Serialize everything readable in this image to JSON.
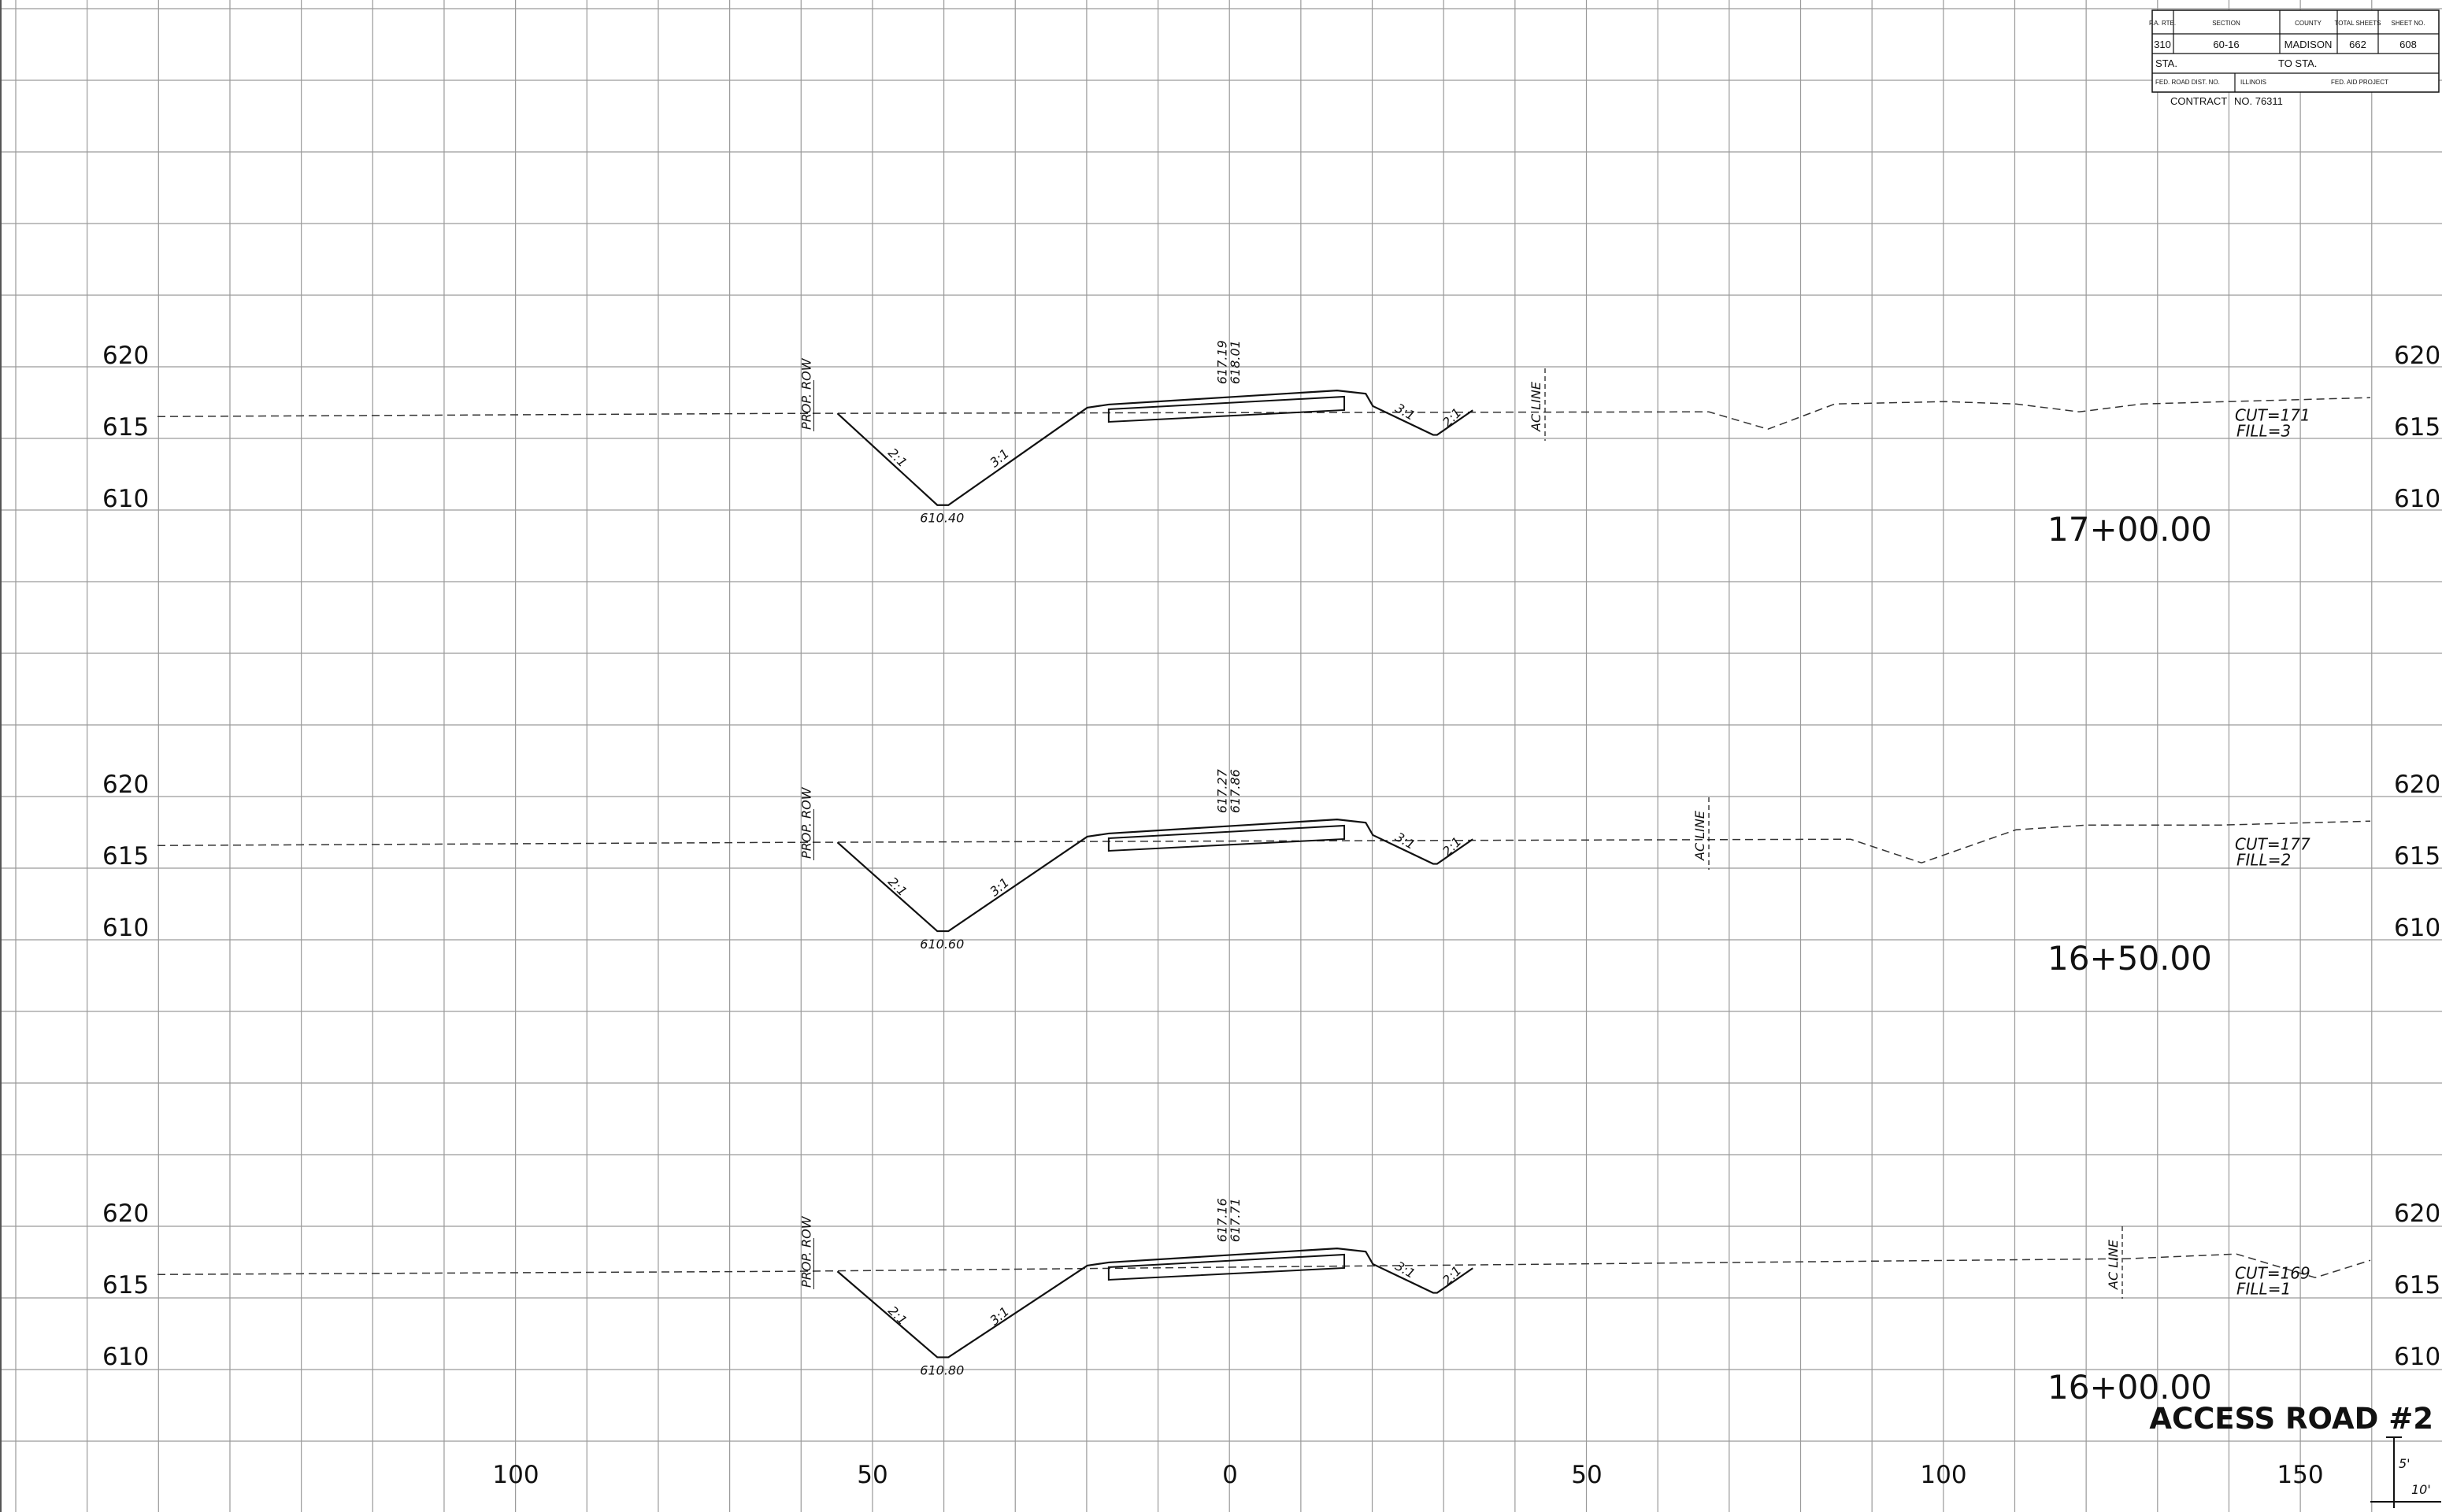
{
  "title_block": {
    "fa_rte_label": "F.A. RTE.",
    "section_label": "SECTION",
    "county_label": "COUNTY",
    "total_sheets_label": "TOTAL SHEETS",
    "sheet_no_label": "SHEET NO.",
    "fa_rte": "310",
    "section": "60-16",
    "county": "MADISON",
    "total_sheets": "662",
    "sheet_no": "608",
    "sta_label": "STA.",
    "to_sta_label": "TO STA.",
    "fed_road_dist_label": "FED. ROAD DIST. NO.",
    "state_label": "ILLINOIS",
    "fed_aid_project_label": "FED. AID PROJECT",
    "contract_label": "CONTRACT",
    "contract_no": "NO. 76311"
  },
  "cross_sections": [
    {
      "station": "17+00.00",
      "ditch_elev": "610.40",
      "grade_top": "617.19",
      "grade_bottom": "618.01",
      "cut": "CUT=171",
      "fill": "FILL=3",
      "elev_labels": [
        "620",
        "615",
        "610"
      ]
    },
    {
      "station": "16+50.00",
      "ditch_elev": "610.60",
      "grade_top": "617.27",
      "grade_bottom": "617.86",
      "cut": "CUT=177",
      "fill": "FILL=2",
      "elev_labels": [
        "620",
        "615",
        "610"
      ]
    },
    {
      "station": "16+00.00",
      "ditch_elev": "610.80",
      "grade_top": "617.16",
      "grade_bottom": "617.71",
      "cut": "CUT=169",
      "fill": "FILL=1",
      "elev_labels": [
        "620",
        "615",
        "610"
      ]
    }
  ],
  "labels": {
    "row": "PROP. ROW",
    "ac_line": "AC LINE",
    "slope_21": "2:1",
    "slope_31": "3:1"
  },
  "offset_axis": [
    "100",
    "50",
    "0",
    "50",
    "100",
    "150"
  ],
  "sheet_title": "ACCESS ROAD #2",
  "scale": {
    "vertical": "5'",
    "horizontal": "10'"
  }
}
